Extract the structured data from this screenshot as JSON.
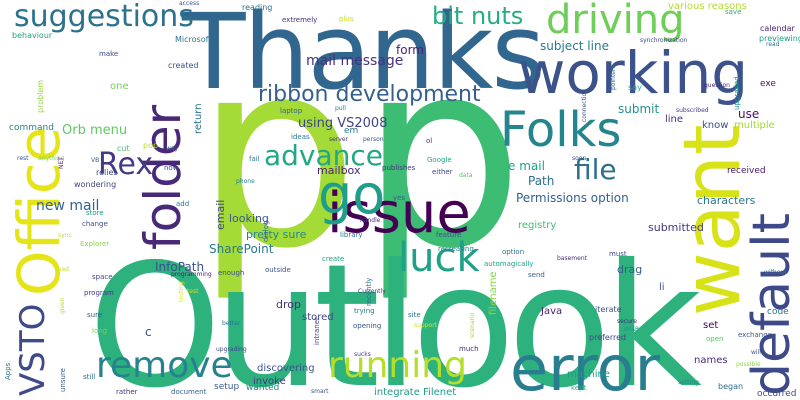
{
  "words": [
    {
      "text": "p",
      "color": "#a5db36"
    },
    {
      "text": "p",
      "color": "#3dbc74"
    },
    {
      "text": "Outlook",
      "color": "#2db27d"
    },
    {
      "text": "Thanks",
      "color": "#31668e"
    },
    {
      "text": "Office",
      "color": "#e5e419"
    },
    {
      "text": "want",
      "color": "#d8e219"
    },
    {
      "text": "working",
      "color": "#3b528b"
    },
    {
      "text": "error",
      "color": "#287d8e"
    },
    {
      "text": "issue",
      "color": "#440154"
    },
    {
      "text": "folder",
      "color": "#482878"
    },
    {
      "text": "Folks",
      "color": "#25858e"
    },
    {
      "text": "default",
      "color": "#3e4989"
    },
    {
      "text": "go",
      "color": "#1f9e89"
    },
    {
      "text": "driving",
      "color": "#6ece58"
    },
    {
      "text": "running",
      "color": "#b5de2b"
    },
    {
      "text": "remove",
      "color": "#26828e"
    },
    {
      "text": "luck",
      "color": "#1fa187"
    },
    {
      "text": "VSTO",
      "color": "#3e4a89"
    },
    {
      "text": "suggestions",
      "color": "#2c728e"
    },
    {
      "text": "advance",
      "color": "#22a884"
    },
    {
      "text": "file",
      "color": "#2d708e"
    },
    {
      "text": "Rex",
      "color": "#443983"
    },
    {
      "text": "ribbon development",
      "color": "#355f8d"
    },
    {
      "text": "bit nuts",
      "color": "#27ad81"
    },
    {
      "text": "mail message",
      "color": "#46337e"
    },
    {
      "text": "using VS2008",
      "color": "#414487"
    },
    {
      "text": "Orb menu",
      "color": "#5ec962"
    },
    {
      "text": "new mail",
      "color": "#33638d"
    },
    {
      "text": "subject line",
      "color": "#2a788e"
    },
    {
      "text": "form",
      "color": "#481f70"
    },
    {
      "text": "e mail",
      "color": "#1fa188"
    },
    {
      "text": "Permissions option",
      "color": "#34618d"
    },
    {
      "text": "Path",
      "color": "#2e6e8e"
    },
    {
      "text": "submit",
      "color": "#20928c"
    },
    {
      "text": "use",
      "color": "#471063"
    },
    {
      "text": "SharePoint",
      "color": "#297b8e"
    },
    {
      "text": "InfoPath",
      "color": "#3b518b"
    },
    {
      "text": "mailbox",
      "color": "#482374"
    },
    {
      "text": "looking",
      "color": "#39568c"
    },
    {
      "text": "characters",
      "color": "#2a778e"
    },
    {
      "text": "submitted",
      "color": "#453882"
    },
    {
      "text": "drop",
      "color": "#472d7b"
    },
    {
      "text": "drag",
      "color": "#355e8d"
    },
    {
      "text": "stored",
      "color": "#3f4788"
    },
    {
      "text": "pretty sure",
      "color": "#24868e"
    },
    {
      "text": "registry",
      "color": "#3fbc73"
    },
    {
      "text": "Java",
      "color": "#481b6d"
    },
    {
      "text": "email",
      "color": "#404688"
    },
    {
      "text": "set",
      "color": "#440256"
    },
    {
      "text": "names",
      "color": "#472c7a"
    },
    {
      "text": "machine",
      "color": "#1e9b8a"
    },
    {
      "text": "return",
      "color": "#2c738e"
    },
    {
      "text": "command",
      "color": "#25848e"
    },
    {
      "text": "one",
      "color": "#75d054"
    },
    {
      "text": "li",
      "color": "#3a548c"
    },
    {
      "text": "know",
      "color": "#3d4e8a"
    },
    {
      "text": "line",
      "color": "#46327e"
    },
    {
      "text": "multiple",
      "color": "#a0da39"
    },
    {
      "text": "received",
      "color": "#48186a"
    },
    {
      "text": "discovering",
      "color": "#39558c"
    },
    {
      "text": "invoke",
      "color": "#453781"
    },
    {
      "text": "wanted",
      "color": "#277f8e"
    },
    {
      "text": "integrate Filenet",
      "color": "#1e9c89"
    },
    {
      "text": "filename",
      "color": "#86d549"
    },
    {
      "text": "setup",
      "color": "#38598c"
    },
    {
      "text": "began",
      "color": "#2f6c8e"
    },
    {
      "text": "occurred",
      "color": "#3e4c8a"
    },
    {
      "text": "code",
      "color": "#2d718e"
    },
    {
      "text": "exe",
      "color": "#481467"
    },
    {
      "text": "save",
      "color": "#25ac82"
    },
    {
      "text": "calendar",
      "color": "#482071"
    },
    {
      "text": "previewing",
      "color": "#1fa088"
    },
    {
      "text": "various reasons",
      "color": "#b2dd2d"
    },
    {
      "text": "reading",
      "color": "#2e6f8e"
    },
    {
      "text": "extremely",
      "color": "#472f7d"
    },
    {
      "text": "plus",
      "color": "#c2df23"
    },
    {
      "text": "access",
      "color": "#3b518b"
    },
    {
      "text": "behaviour",
      "color": "#20a386"
    },
    {
      "text": "Microsoft",
      "color": "#2b758e"
    },
    {
      "text": "make",
      "color": "#3e4989"
    },
    {
      "text": "created",
      "color": "#3a538b"
    },
    {
      "text": "problem",
      "color": "#95d840"
    },
    {
      "text": "laptop",
      "color": "#33638d"
    },
    {
      "text": "pull",
      "color": "#26828e"
    },
    {
      "text": "ideas",
      "color": "#2a788e"
    },
    {
      "text": "server",
      "color": "#46327e"
    },
    {
      "text": "person",
      "color": "#3b528b"
    },
    {
      "text": "em",
      "color": "#2c728e"
    },
    {
      "text": "ol",
      "color": "#46337e"
    },
    {
      "text": "pop",
      "color": "#b8de29"
    },
    {
      "text": "cut",
      "color": "#4ac16d"
    },
    {
      "text": "way",
      "color": "#2c718e"
    },
    {
      "text": "VB",
      "color": "#355e8d"
    },
    {
      "text": "rest",
      "color": "#39558c"
    },
    {
      "text": "anything",
      "color": "#7fd34e"
    },
    {
      "text": "relies",
      "color": "#3f4788"
    },
    {
      "text": "NET",
      "color": "#48186a"
    },
    {
      "text": "wondering",
      "color": "#414487"
    },
    {
      "text": "store",
      "color": "#1f988b"
    },
    {
      "text": "change",
      "color": "#3e4c8a"
    },
    {
      "text": "Explorer",
      "color": "#8bd646"
    },
    {
      "text": "add",
      "color": "#2a778e"
    },
    {
      "text": "now",
      "color": "#3a548c"
    },
    {
      "text": "fail",
      "color": "#287c8e"
    },
    {
      "text": "phone",
      "color": "#25848e"
    },
    {
      "text": "dialog",
      "color": "#2d708e"
    },
    {
      "text": "publishes",
      "color": "#453781"
    },
    {
      "text": "either",
      "color": "#3f4889"
    },
    {
      "text": "Google",
      "color": "#20a486"
    },
    {
      "text": "data",
      "color": "#52c569"
    },
    {
      "text": "yes",
      "color": "#34618d"
    },
    {
      "text": "handle",
      "color": "#46307e"
    },
    {
      "text": "library",
      "color": "#2c738e"
    },
    {
      "text": "feature",
      "color": "#3b518b"
    },
    {
      "text": "recreating",
      "color": "#287d8e"
    },
    {
      "text": "option",
      "color": "#2d708e"
    },
    {
      "text": "automagically",
      "color": "#1fa187"
    },
    {
      "text": "basement",
      "color": "#472e7c"
    },
    {
      "text": "soon",
      "color": "#3d4e8a"
    },
    {
      "text": "connection",
      "color": "#3a548c"
    },
    {
      "text": "say",
      "color": "#27ad81"
    },
    {
      "text": "pointers",
      "color": "#2b758e"
    },
    {
      "text": "synchronization",
      "color": "#3e4a89"
    },
    {
      "text": "subscribed",
      "color": "#453882"
    },
    {
      "text": "upgraded",
      "color": "#20928c"
    },
    {
      "text": "question",
      "color": "#472a7a"
    },
    {
      "text": "read",
      "color": "#2f6c8e"
    },
    {
      "text": "create",
      "color": "#1fa088"
    },
    {
      "text": "outside",
      "color": "#39568c"
    },
    {
      "text": "enough",
      "color": "#3b528b"
    },
    {
      "text": "recently",
      "color": "#2e6e8e"
    },
    {
      "text": "intranet",
      "color": "#404588"
    },
    {
      "text": "Currently",
      "color": "#46327e"
    },
    {
      "text": "trying",
      "color": "#2a788e"
    },
    {
      "text": "site",
      "color": "#2d718e"
    },
    {
      "text": "opening",
      "color": "#3a548c"
    },
    {
      "text": "support",
      "color": "#d2e21b"
    },
    {
      "text": "scenario",
      "color": "#9fda3a"
    },
    {
      "text": "send",
      "color": "#31668e"
    },
    {
      "text": "iterate",
      "color": "#3d4e8a"
    },
    {
      "text": "secure",
      "color": "#482576"
    },
    {
      "text": "IMAP",
      "color": "#1f968b"
    },
    {
      "text": "preferred",
      "color": "#3f4788"
    },
    {
      "text": "must",
      "color": "#3e4a89"
    },
    {
      "text": "exchange",
      "color": "#38598c"
    },
    {
      "text": "without",
      "color": "#2c728e"
    },
    {
      "text": "possible",
      "color": "#8ed645"
    },
    {
      "text": "will",
      "color": "#3b528b"
    },
    {
      "text": "setting",
      "color": "#25848e"
    },
    {
      "text": "kept",
      "color": "#2dad80"
    },
    {
      "text": "much",
      "color": "#472f7d"
    },
    {
      "text": "open",
      "color": "#58c765"
    },
    {
      "text": "sucks",
      "color": "#414487"
    },
    {
      "text": "smart",
      "color": "#3b518b"
    },
    {
      "text": "rather",
      "color": "#46337e"
    },
    {
      "text": "document",
      "color": "#33638d"
    },
    {
      "text": "upgrading",
      "color": "#3e4989"
    },
    {
      "text": "better",
      "color": "#2a768e"
    },
    {
      "text": "long",
      "color": "#7ad151"
    },
    {
      "text": "sure",
      "color": "#3a538b"
    },
    {
      "text": "still",
      "color": "#2e6e8e"
    },
    {
      "text": "unsure",
      "color": "#39568c"
    },
    {
      "text": "Apps",
      "color": "#2b758e"
    },
    {
      "text": "program",
      "color": "#453882"
    },
    {
      "text": "space",
      "color": "#404588"
    },
    {
      "text": "programming",
      "color": "#482071"
    },
    {
      "text": "given",
      "color": "#b0dd2f"
    },
    {
      "text": "test",
      "color": "#d0e11c"
    },
    {
      "text": "testing",
      "color": "#e7e419"
    },
    {
      "text": "load",
      "color": "#c8e020"
    },
    {
      "text": "sync",
      "color": "#bddf26"
    },
    {
      "text": "c",
      "color": "#3b528b"
    }
  ]
}
